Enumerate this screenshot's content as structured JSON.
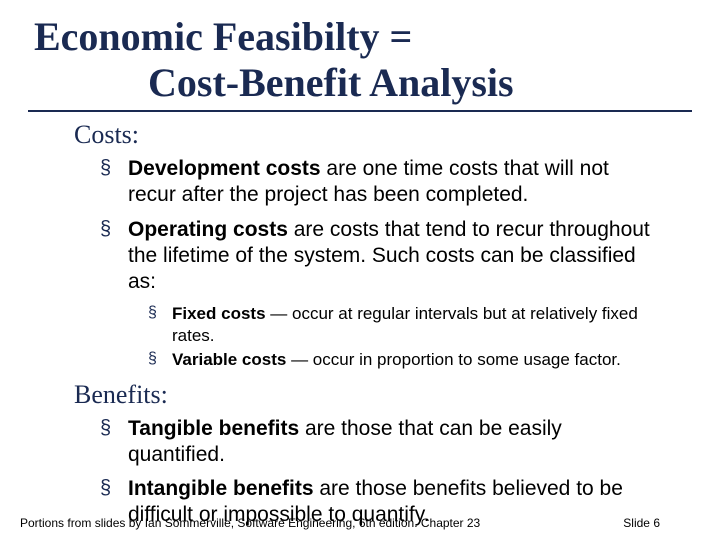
{
  "colors": {
    "title": "#1a2a52",
    "rule": "#1a2a52",
    "bullet": "#1a2a52",
    "text": "#000000",
    "background": "#ffffff"
  },
  "typography": {
    "title_family": "Times New Roman",
    "body_family": "Arial",
    "title_size_pt": 40,
    "section_label_size_pt": 26,
    "bullet_l1_size_pt": 21,
    "bullet_l2_size_pt": 17,
    "footer_size_pt": 12
  },
  "title": {
    "line1": "Economic Feasibilty =",
    "line2": "Cost-Benefit Analysis"
  },
  "sections": {
    "costs": {
      "label": "Costs:",
      "items": [
        {
          "bold": "Development costs",
          "rest": " are one time costs that will not recur after the project has been completed."
        },
        {
          "bold": "Operating costs",
          "rest": " are costs that tend to recur throughout the lifetime of the system. Such costs can be classified as:"
        }
      ],
      "sub_items": [
        {
          "bold": "Fixed costs",
          "rest": " — occur at regular intervals but at relatively fixed rates."
        },
        {
          "bold": "Variable costs",
          "rest": " — occur in proportion to some usage factor."
        }
      ]
    },
    "benefits": {
      "label": "Benefits:",
      "items": [
        {
          "bold": "Tangible benefits",
          "rest": " are those that can be easily quantified."
        },
        {
          "bold": "Intangible benefits",
          "rest": " are those benefits believed to be difficult or impossible to quantify."
        }
      ]
    }
  },
  "footer": {
    "attribution": "Portions from slides by Ian Sommerville, Software Engineering, 6th edition. Chapter 23",
    "slide_number": "Slide 6"
  }
}
